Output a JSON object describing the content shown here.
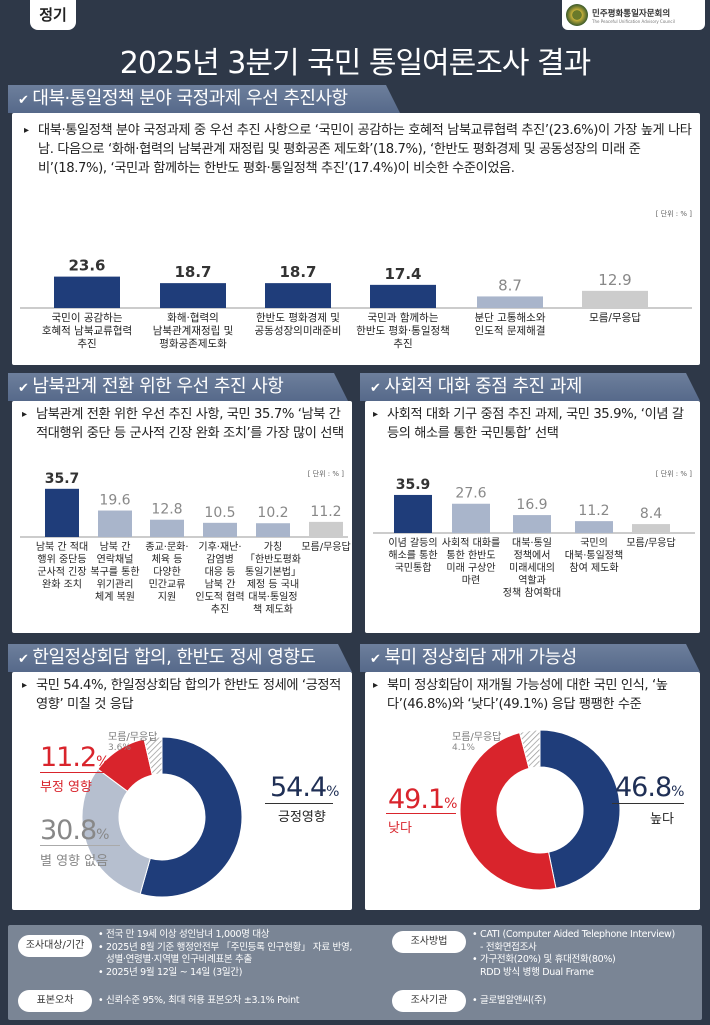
{
  "header": {
    "tag": "정기",
    "logo_ko": "민주평화통일자문회의",
    "logo_en": "The Peaceful Unification Advisory Council",
    "title": "2025년 3분기 국민 통일여론조사 결과"
  },
  "colors": {
    "navy": "#1f3d7a",
    "light_blue": "#a9b5cb",
    "gray": "#cccccc",
    "red": "#d9242c",
    "donut_light": "#b6bfcf",
    "background": "#2e3848"
  },
  "sections": [
    {
      "heading": "대북·통일정책 분야 국정과제 우선 추진사항",
      "lead": "대북·통일정책  분야 국정과제 중 우선 추진 사항으로 ‘국민이 공감하는 호혜적 남북교류협력 추진’(23.6%)이 가장 높게 나타남. 다음으로 ‘화해·협력의 남북관계 재정립 및 평화공존 제도화’(18.7%), ‘한반도 평화경제 및 공동성장의 미래 준비’(18.7%), ‘국민과 함께하는 한반도 평화·통일정책 추진’(17.4%)이 비슷한 수준이었음.",
      "unit": "[ 단위 : % ]"
    },
    {
      "heading": "남북관계 전환 위한 우선 추진 사항",
      "lead": "남북관계 전환 위한 우선 추진 사항, 국민 35.7% ‘남북 간 적대행위 중단 등 군사적 긴장 완화 조치’를 가장 많이 선택",
      "unit": "[ 단위 : % ]"
    },
    {
      "heading": "사회적 대화 중점 추진 과제",
      "lead": "사회적 대화 기구 중점 추진 과제, 국민 35.9%, ‘이념 갈등의 해소를 통한 국민통합’ 선택",
      "unit": "[ 단위 : % ]"
    },
    {
      "heading": "한일정상회담 합의, 한반도 정세 영향도",
      "lead": "국민 54.4%, 한일정상회담 합의가 한반도 정세에 ‘긍정적 영향’ 미칠 것 응답"
    },
    {
      "heading": "북미 정상회담 재개 가능성",
      "lead": "북미 정상회담이 재개될 가능성에 대한 국민 인식, ‘높다’(46.8%)와 ‘낮다’(49.1%) 응답 팽팽한 수준"
    }
  ],
  "chart_data": [
    {
      "type": "bar",
      "unit": "%",
      "categories": [
        "국민이 공감하는\n호혜적 남북교류협력\n추진",
        "화해·협력의\n남북관계재정립 및\n평화공존제도화",
        "한반도 평화경제 및\n공동성장의미래준비",
        "국민과 함께하는\n한반도 평화·통일정책\n추진",
        "분단 고통해소와\n인도적 문제해결",
        "모름/무응답"
      ],
      "values": [
        23.6,
        18.7,
        18.7,
        17.4,
        8.7,
        12.9
      ],
      "bar_colors": [
        "navy",
        "navy",
        "navy",
        "navy",
        "light_blue",
        "gray"
      ]
    },
    {
      "type": "bar",
      "unit": "%",
      "categories": [
        "남북 간 적대\n행위 중단등\n군사적 긴장\n완화 조치",
        "남북 간\n연락채널\n복구를 통한\n위기관리\n체계 복원",
        "종교·문화·\n체육 등\n다양한\n민간교류\n지원",
        "기후·재난·\n감염병\n대응 등\n남북 간\n인도적 협력\n추진",
        "가칭\n「한반도평화\n통일기본법」\n제정 등 국내\n대북·통일정\n책 제도화",
        "모름/무응답"
      ],
      "values": [
        35.7,
        19.6,
        12.8,
        10.5,
        10.2,
        11.2
      ],
      "bar_colors": [
        "navy",
        "light_blue",
        "light_blue",
        "light_blue",
        "light_blue",
        "gray"
      ]
    },
    {
      "type": "bar",
      "unit": "%",
      "categories": [
        "이념 갈등의\n해소를 통한\n국민통합",
        "사회적 대화를\n통한 한반도\n미래 구상안\n마련",
        "대북·통일\n정책에서\n미래세대의\n역할과\n정책 참여확대",
        "국민의\n대북·통일정책\n참여 제도화",
        "모름/무응답"
      ],
      "values": [
        35.9,
        27.6,
        16.9,
        11.2,
        8.4
      ],
      "bar_colors": [
        "navy",
        "light_blue",
        "light_blue",
        "light_blue",
        "gray"
      ]
    },
    {
      "type": "pie",
      "variant": "donut",
      "slices": [
        {
          "label": "긍정영향",
          "value": 54.4,
          "color": "navy"
        },
        {
          "label": "별 영향 없음",
          "value": 30.8,
          "color": "donut_light"
        },
        {
          "label": "부정 영향",
          "value": 11.2,
          "color": "red"
        },
        {
          "label": "모름/무응답",
          "value": 3.6,
          "color": "hatched"
        }
      ]
    },
    {
      "type": "pie",
      "variant": "donut",
      "slices": [
        {
          "label": "높다",
          "value": 46.8,
          "color": "navy"
        },
        {
          "label": "낮다",
          "value": 49.1,
          "color": "red"
        },
        {
          "label": "모름/무응답",
          "value": 4.1,
          "color": "hatched"
        }
      ]
    }
  ],
  "donut_labels": {
    "left": {
      "pos": "54.4",
      "pos_label": "긍정영향",
      "none": "30.8",
      "none_label": "별 영향 없음",
      "neg": "11.2",
      "neg_label": "부정 영향",
      "dk_label": "모름/무응답",
      "dk": "3.6%",
      "pct": "%"
    },
    "right": {
      "high": "46.8",
      "high_label": "높다",
      "low": "49.1",
      "low_label": "낮다",
      "dk_label": "모름/무응답",
      "dk": "4.1%",
      "pct": "%"
    }
  },
  "footer": {
    "target_label": "조사대상/기간",
    "target_lines": [
      "전국 만 19세 이상 성인남녀 1,000명 대상",
      "2025년 8월 기준 행정안전부 「주민등록 인구현황」 자료 반영,",
      "성별·연령별·지역별 인구비례표본 추출",
      "2025년 9월 12일 ~ 14일 (3일간)"
    ],
    "error_label": "표본오차",
    "error_text": "신뢰수준 95%, 최대 허용 표본오차 ±3.1% Point",
    "method_label": "조사방법",
    "method_lines": [
      "CATI (Computer Aided Telephone Interview)",
      "- 전화면접조사",
      "가구전화(20%) 및 휴대전화(80%)",
      "RDD 방식 병행 Dual Frame"
    ],
    "agency_label": "조사기관",
    "agency_text": "글로벌알앤씨(주)"
  }
}
